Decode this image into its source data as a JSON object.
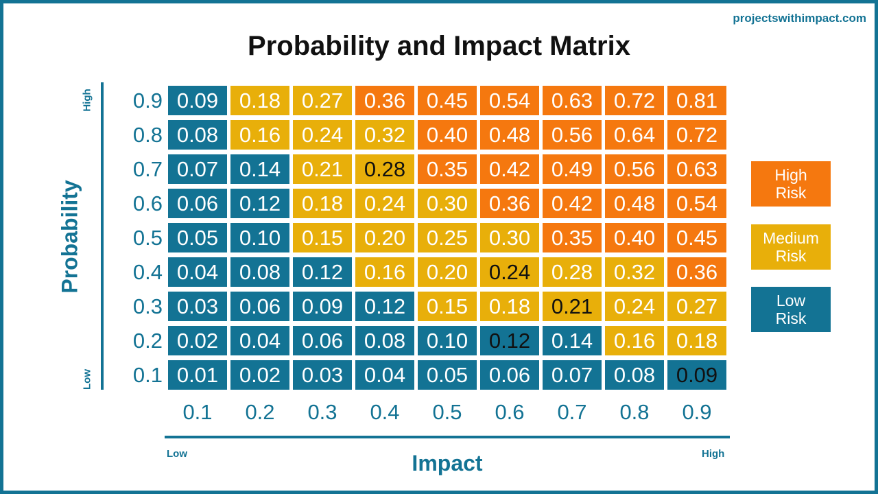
{
  "site": "projectswithimpact.com",
  "colors": {
    "high": "#F5780F",
    "medium": "#E8AF0A",
    "low": "#137394"
  },
  "chart_data": {
    "type": "heatmap",
    "title": "Probability and Impact Matrix",
    "xlabel": "Impact",
    "ylabel": "Probability",
    "x_end_labels": {
      "low": "Low",
      "high": "High"
    },
    "y_end_labels": {
      "low": "Low",
      "high": "High"
    },
    "x": [
      "0.1",
      "0.2",
      "0.3",
      "0.4",
      "0.5",
      "0.6",
      "0.7",
      "0.8",
      "0.9"
    ],
    "y": [
      "0.9",
      "0.8",
      "0.7",
      "0.6",
      "0.5",
      "0.4",
      "0.3",
      "0.2",
      "0.1"
    ],
    "values": [
      [
        "0.09",
        "0.18",
        "0.27",
        "0.36",
        "0.45",
        "0.54",
        "0.63",
        "0.72",
        "0.81"
      ],
      [
        "0.08",
        "0.16",
        "0.24",
        "0.32",
        "0.40",
        "0.48",
        "0.56",
        "0.64",
        "0.72"
      ],
      [
        "0.07",
        "0.14",
        "0.21",
        "0.28",
        "0.35",
        "0.42",
        "0.49",
        "0.56",
        "0.63"
      ],
      [
        "0.06",
        "0.12",
        "0.18",
        "0.24",
        "0.30",
        "0.36",
        "0.42",
        "0.48",
        "0.54"
      ],
      [
        "0.05",
        "0.10",
        "0.15",
        "0.20",
        "0.25",
        "0.30",
        "0.35",
        "0.40",
        "0.45"
      ],
      [
        "0.04",
        "0.08",
        "0.12",
        "0.16",
        "0.20",
        "0.24",
        "0.28",
        "0.32",
        "0.36"
      ],
      [
        "0.03",
        "0.06",
        "0.09",
        "0.12",
        "0.15",
        "0.18",
        "0.21",
        "0.24",
        "0.27"
      ],
      [
        "0.02",
        "0.04",
        "0.06",
        "0.08",
        "0.10",
        "0.12",
        "0.14",
        "0.16",
        "0.18"
      ],
      [
        "0.01",
        "0.02",
        "0.03",
        "0.04",
        "0.05",
        "0.06",
        "0.07",
        "0.08",
        "0.09"
      ]
    ],
    "risk": [
      [
        "L",
        "M",
        "M",
        "H",
        "H",
        "H",
        "H",
        "H",
        "H"
      ],
      [
        "L",
        "M",
        "M",
        "M",
        "H",
        "H",
        "H",
        "H",
        "H"
      ],
      [
        "L",
        "L",
        "M",
        "M",
        "H",
        "H",
        "H",
        "H",
        "H"
      ],
      [
        "L",
        "L",
        "M",
        "M",
        "M",
        "H",
        "H",
        "H",
        "H"
      ],
      [
        "L",
        "L",
        "M",
        "M",
        "M",
        "M",
        "H",
        "H",
        "H"
      ],
      [
        "L",
        "L",
        "L",
        "M",
        "M",
        "M",
        "M",
        "M",
        "H"
      ],
      [
        "L",
        "L",
        "L",
        "L",
        "M",
        "M",
        "M",
        "M",
        "M"
      ],
      [
        "L",
        "L",
        "L",
        "L",
        "L",
        "L",
        "L",
        "M",
        "M"
      ],
      [
        "L",
        "L",
        "L",
        "L",
        "L",
        "L",
        "L",
        "L",
        "L"
      ]
    ],
    "dark_text_cells": [
      [
        2,
        3
      ],
      [
        5,
        5
      ],
      [
        6,
        6
      ],
      [
        7,
        5
      ],
      [
        8,
        8
      ]
    ],
    "legend": [
      {
        "key": "H",
        "lines": [
          "High",
          "Risk"
        ]
      },
      {
        "key": "M",
        "lines": [
          "Medium",
          "Risk"
        ]
      },
      {
        "key": "L",
        "lines": [
          "Low",
          "Risk"
        ]
      }
    ]
  }
}
